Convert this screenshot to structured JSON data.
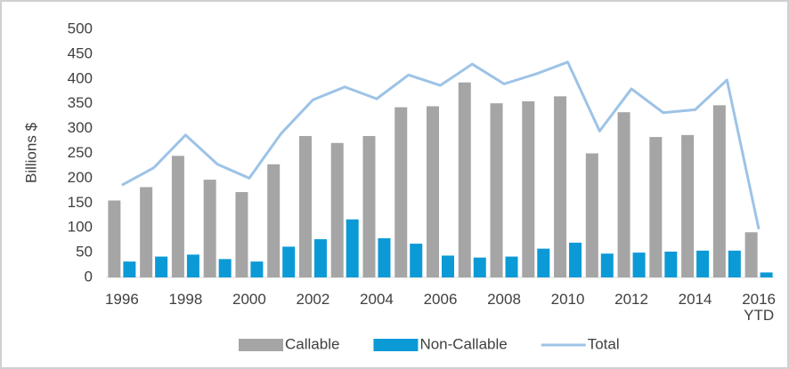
{
  "chart_data": {
    "type": "bar_line",
    "y_label": "Billions $",
    "categories": [
      "1996",
      null,
      "1998",
      null,
      "2000",
      null,
      "2002",
      null,
      "2004",
      null,
      "2006",
      null,
      "2008",
      null,
      "2010",
      null,
      "2012",
      null,
      "2014",
      null,
      "2016 YTD"
    ],
    "series": [
      {
        "name": "Callable",
        "type": "bar",
        "color": "#a5a5a5",
        "values": [
          155,
          182,
          245,
          197,
          172,
          228,
          285,
          271,
          285,
          343,
          345,
          393,
          351,
          355,
          365,
          250,
          333,
          283,
          287,
          347,
          91
        ]
      },
      {
        "name": "Non-Callable",
        "type": "bar",
        "color": "#0c9ad6",
        "values": [
          32,
          42,
          46,
          37,
          32,
          62,
          77,
          117,
          79,
          68,
          44,
          40,
          42,
          58,
          70,
          48,
          50,
          52,
          54,
          54,
          10
        ]
      },
      {
        "name": "Total",
        "type": "line",
        "color": "#9dc3e6",
        "values": [
          186,
          221,
          287,
          228,
          200,
          290,
          358,
          384,
          360,
          408,
          387,
          430,
          390,
          410,
          434,
          295,
          380,
          332,
          338,
          398,
          97
        ]
      }
    ],
    "ylim": [
      0,
      500
    ],
    "yticks": [
      0,
      50,
      100,
      150,
      200,
      250,
      300,
      350,
      400,
      450,
      500
    ],
    "grid": false,
    "legend": "bottom"
  }
}
